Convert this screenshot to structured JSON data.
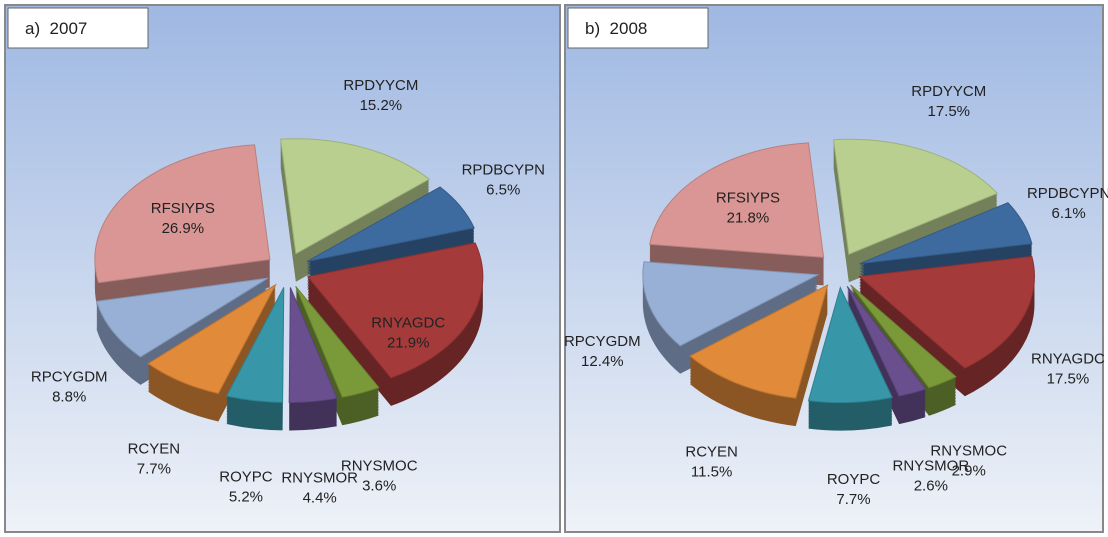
{
  "chart_data": [
    {
      "type": "pie",
      "title": "a)  2007",
      "categories": [
        "RPDYYCM",
        "RPDBCYPN",
        "RNYAGDC",
        "RNYSMOC",
        "RNYSMOR",
        "ROYPC",
        "RCYEN",
        "RPCYGDM",
        "RFSIYPS"
      ],
      "values": [
        15.2,
        6.5,
        21.9,
        3.6,
        4.4,
        5.2,
        7.7,
        8.8,
        26.9
      ],
      "value_labels": [
        "15.2%",
        "6.5%",
        "21.9%",
        "3.6%",
        "4.4%",
        "5.2%",
        "7.7%",
        "8.8%",
        "26.9%"
      ],
      "colors": [
        "#b9cf8f",
        "#3e6b9f",
        "#a53a3a",
        "#7a9a3a",
        "#6a4f8f",
        "#3796a8",
        "#e08a3a",
        "#98b0d6",
        "#d99694"
      ]
    },
    {
      "type": "pie",
      "title": "b)  2008",
      "categories": [
        "RPDYYCM",
        "RPDBCYPN",
        "RNYAGDC",
        "RNYSMOC",
        "RNYSMOR",
        "ROYPC",
        "RCYEN",
        "RPCYGDM",
        "RFSIYPS"
      ],
      "values": [
        17.5,
        6.1,
        17.5,
        2.9,
        2.6,
        7.7,
        11.5,
        12.4,
        21.8
      ],
      "value_labels": [
        "17.5%",
        "6.1%",
        "17.5%",
        "2.9%",
        "2.6%",
        "7.7%",
        "11.5%",
        "12.4%",
        "21.8%"
      ],
      "colors": [
        "#b9cf8f",
        "#3e6b9f",
        "#a53a3a",
        "#7a9a3a",
        "#6a4f8f",
        "#3796a8",
        "#e08a3a",
        "#98b0d6",
        "#d99694"
      ]
    }
  ]
}
